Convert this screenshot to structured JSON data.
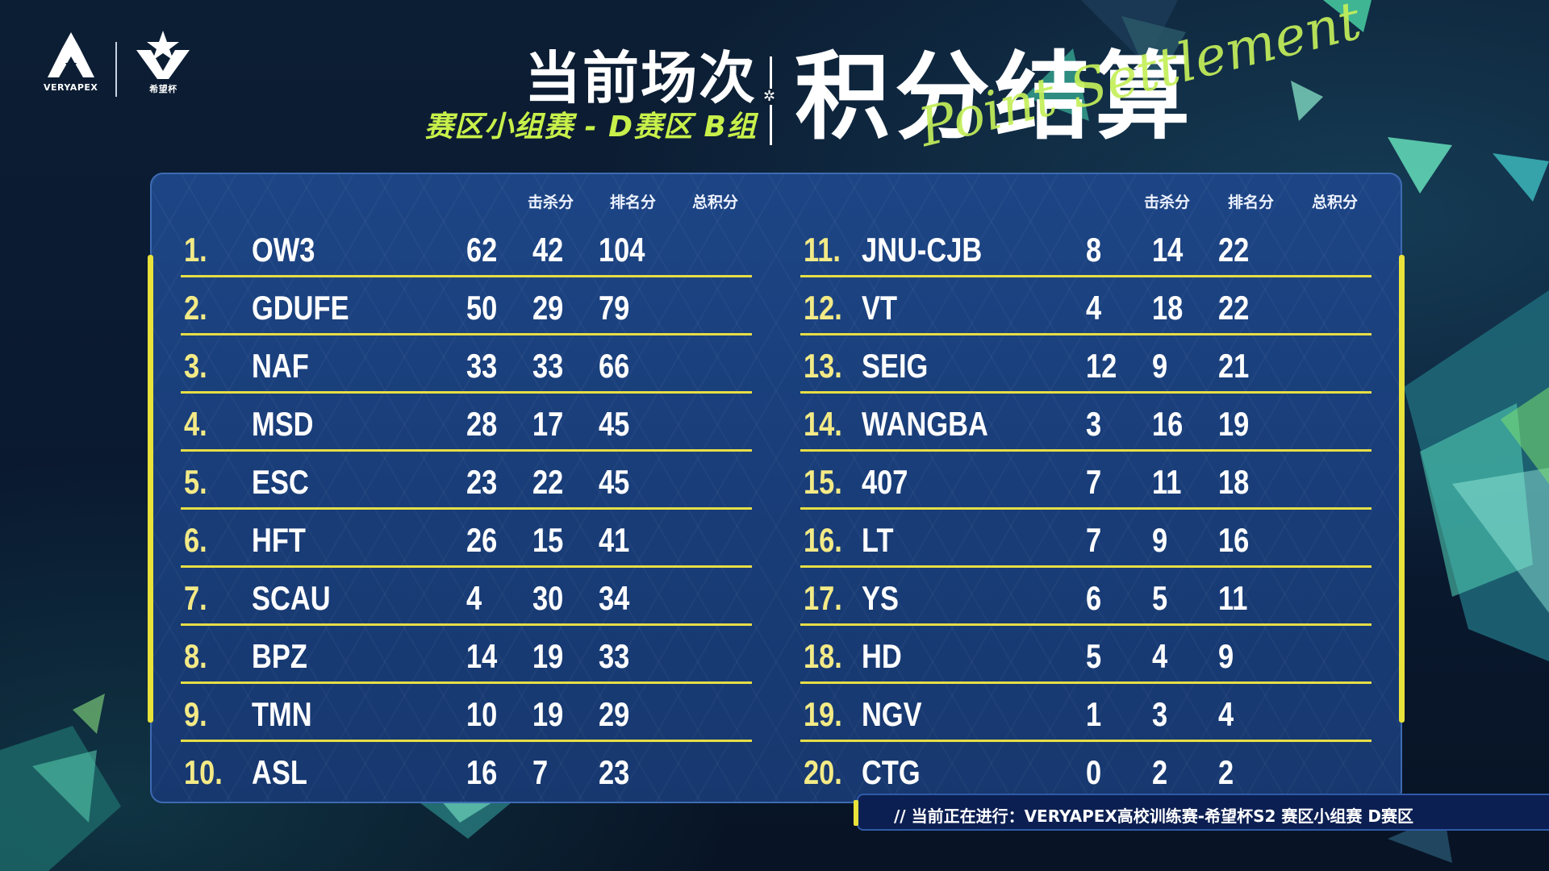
{
  "logos": {
    "left_text": "VERYAPEX",
    "right_text": "希望杯"
  },
  "title": {
    "main": "当前场次",
    "sub": "赛区小组赛 - D赛区 B组",
    "big": "积分结算",
    "script": "Point Settlement"
  },
  "headers": {
    "kills": "击杀分",
    "placement": "排名分",
    "total": "总积分"
  },
  "left_column": [
    {
      "rank": "1.",
      "team": "OW3",
      "kills": "62",
      "placement": "42",
      "total": "104"
    },
    {
      "rank": "2.",
      "team": "GDUFE",
      "kills": "50",
      "placement": "29",
      "total": "79"
    },
    {
      "rank": "3.",
      "team": "NAF",
      "kills": "33",
      "placement": "33",
      "total": "66"
    },
    {
      "rank": "4.",
      "team": "MSD",
      "kills": "28",
      "placement": "17",
      "total": "45"
    },
    {
      "rank": "5.",
      "team": "ESC",
      "kills": "23",
      "placement": "22",
      "total": "45"
    },
    {
      "rank": "6.",
      "team": "HFT",
      "kills": "26",
      "placement": "15",
      "total": "41"
    },
    {
      "rank": "7.",
      "team": "SCAU",
      "kills": "4",
      "placement": "30",
      "total": "34"
    },
    {
      "rank": "8.",
      "team": "BPZ",
      "kills": "14",
      "placement": "19",
      "total": "33"
    },
    {
      "rank": "9.",
      "team": "TMN",
      "kills": "10",
      "placement": "19",
      "total": "29"
    },
    {
      "rank": "10.",
      "team": "ASL",
      "kills": "16",
      "placement": "7",
      "total": "23"
    }
  ],
  "right_column": [
    {
      "rank": "11.",
      "team": "JNU-CJB",
      "kills": "8",
      "placement": "14",
      "total": "22"
    },
    {
      "rank": "12.",
      "team": "VT",
      "kills": "4",
      "placement": "18",
      "total": "22"
    },
    {
      "rank": "13.",
      "team": "SEIG",
      "kills": "12",
      "placement": "9",
      "total": "21"
    },
    {
      "rank": "14.",
      "team": "WANGBA",
      "kills": "3",
      "placement": "16",
      "total": "19"
    },
    {
      "rank": "15.",
      "team": "407",
      "kills": "7",
      "placement": "11",
      "total": "18"
    },
    {
      "rank": "16.",
      "team": "LT",
      "kills": "7",
      "placement": "9",
      "total": "16"
    },
    {
      "rank": "17.",
      "team": "YS",
      "kills": "6",
      "placement": "5",
      "total": "11"
    },
    {
      "rank": "18.",
      "team": "HD",
      "kills": "5",
      "placement": "4",
      "total": "9"
    },
    {
      "rank": "19.",
      "team": "NGV",
      "kills": "1",
      "placement": "3",
      "total": "4"
    },
    {
      "rank": "20.",
      "team": "CTG",
      "kills": "0",
      "placement": "2",
      "total": "2"
    }
  ],
  "ticker": {
    "text": "//   当前正在进行：VERYAPEX高校训练赛-希望杯S2  赛区小组赛    D赛区"
  },
  "colors": {
    "accent": "#e8e23a",
    "rank": "#f3ea86",
    "subtitle": "#c8f04a",
    "panel": "#1a3e7a"
  }
}
